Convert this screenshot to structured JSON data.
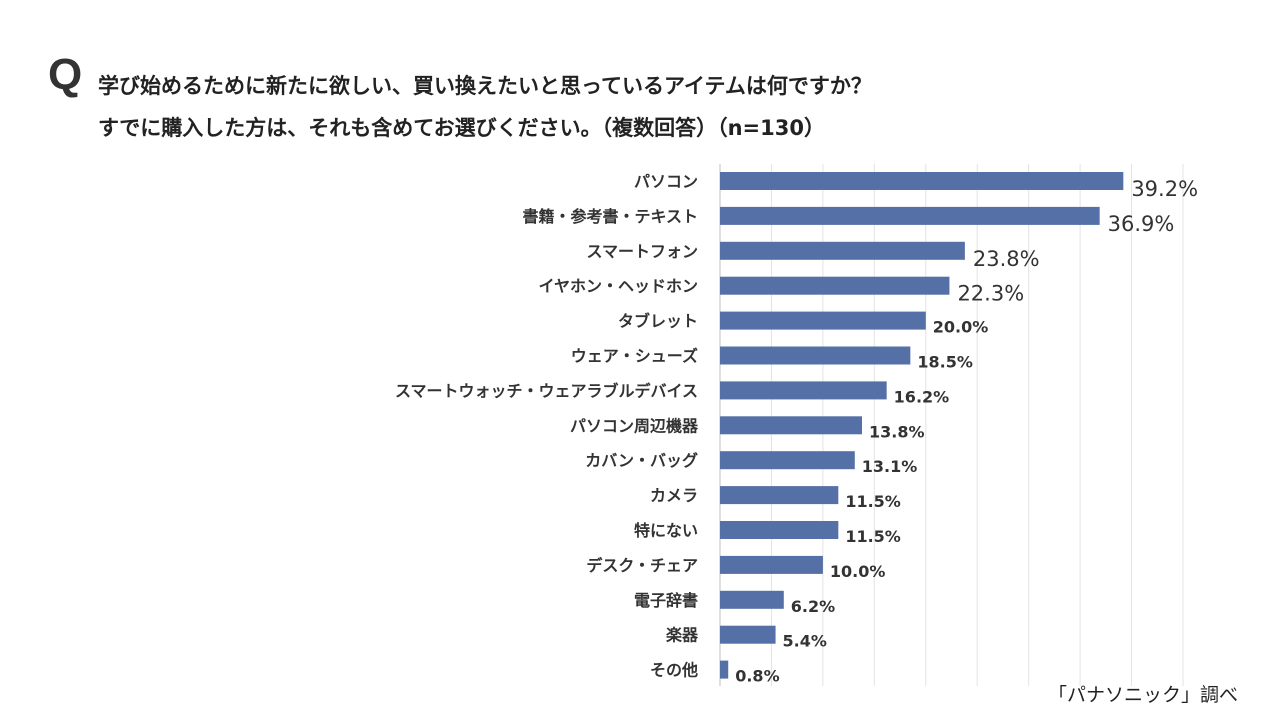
{
  "chart_data": {
    "type": "bar",
    "orientation": "horizontal",
    "title_mark": "Q",
    "title_line1": "学び始めるために新たに欲しい、買い換えたいと思っているアイテムは何ですか？",
    "title_line2": "すでに購入した方は、それも含めてお選びください。（複数回答）（n=130）",
    "categories": [
      "パソコン",
      "書籍・参考書・テキスト",
      "スマートフォン",
      "イヤホン・ヘッドホン",
      "タブレット",
      "ウェア・シューズ",
      "スマートウォッチ・ウェアラブルデバイス",
      "パソコン周辺機器",
      "カバン・バッグ",
      "カメラ",
      "特にない",
      "デスク・チェア",
      "電子辞書",
      "楽器",
      "その他"
    ],
    "values": [
      39.2,
      36.9,
      23.8,
      22.3,
      20.0,
      18.5,
      16.2,
      13.8,
      13.1,
      11.5,
      11.5,
      10.0,
      6.2,
      5.4,
      0.8
    ],
    "data_labels": [
      "39.2%",
      "36.9%",
      "23.8%",
      "22.3%",
      "20.0%",
      "18.5%",
      "16.2%",
      "13.8%",
      "13.1%",
      "11.5%",
      "11.5%",
      "10.0%",
      "6.2%",
      "5.4%",
      "0.8%"
    ],
    "xlim": [
      0,
      45
    ],
    "grid": true,
    "bar_color": "#5470a6",
    "source": "「パナソニック」調べ"
  }
}
